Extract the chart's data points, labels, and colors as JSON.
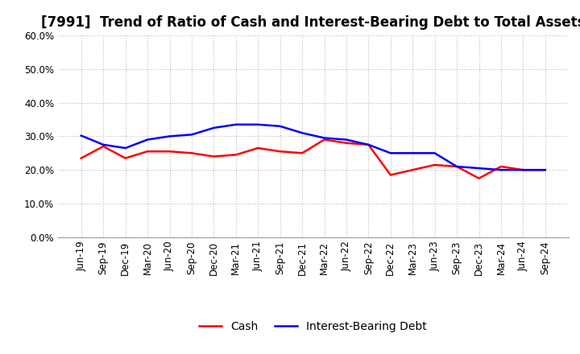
{
  "title": "[7991]  Trend of Ratio of Cash and Interest-Bearing Debt to Total Assets",
  "x_labels": [
    "Jun-19",
    "Sep-19",
    "Dec-19",
    "Mar-20",
    "Jun-20",
    "Sep-20",
    "Dec-20",
    "Mar-21",
    "Jun-21",
    "Sep-21",
    "Dec-21",
    "Mar-22",
    "Jun-22",
    "Sep-22",
    "Dec-22",
    "Mar-23",
    "Jun-23",
    "Sep-23",
    "Dec-23",
    "Mar-24",
    "Jun-24",
    "Sep-24"
  ],
  "cash": [
    23.5,
    27.0,
    23.5,
    25.5,
    25.5,
    25.0,
    24.0,
    24.5,
    26.5,
    25.5,
    25.0,
    29.0,
    28.0,
    27.5,
    18.5,
    20.0,
    21.5,
    21.0,
    17.5,
    21.0,
    20.0,
    20.0
  ],
  "interest_bearing_debt": [
    30.2,
    27.5,
    26.5,
    29.0,
    30.0,
    30.5,
    32.5,
    33.5,
    33.5,
    33.0,
    31.0,
    29.5,
    29.0,
    27.5,
    25.0,
    25.0,
    25.0,
    21.0,
    20.5,
    20.0,
    20.0,
    20.0
  ],
  "cash_color": "#ff0000",
  "ibd_color": "#0000ff",
  "ylim": [
    0.0,
    60.0
  ],
  "yticks": [
    0.0,
    10.0,
    20.0,
    30.0,
    40.0,
    50.0,
    60.0
  ],
  "legend_cash": "Cash",
  "legend_ibd": "Interest-Bearing Debt",
  "background_color": "#ffffff",
  "plot_bg_color": "#ffffff",
  "grid_color": "#bbbbbb",
  "title_fontsize": 12,
  "axis_fontsize": 8.5,
  "legend_fontsize": 10,
  "line_width": 1.8
}
